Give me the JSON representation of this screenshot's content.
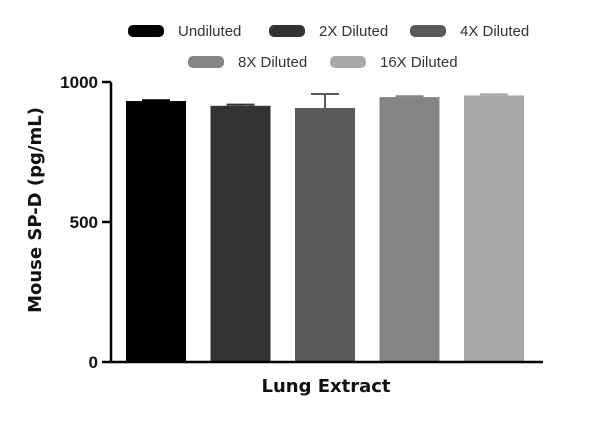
{
  "chart_data": {
    "type": "bar",
    "group_label": "Lung Extract",
    "categories": [
      "Undiluted",
      "2X Diluted",
      "4X Diluted",
      "8X Diluted",
      "16X Diluted"
    ],
    "values": [
      932,
      915,
      907,
      946,
      952
    ],
    "errors": [
      3,
      4,
      50,
      3,
      4
    ],
    "colors": [
      "#000000",
      "#333333",
      "#5a5a5a",
      "#848484",
      "#a8a8aa"
    ],
    "xlabel": "Lung Extract",
    "ylabel": "Mouse SP-D (pg/mL)",
    "ylim": [
      0,
      1000
    ],
    "yticks": [
      0,
      500,
      1000
    ],
    "grid": false,
    "legend_position": "top"
  }
}
